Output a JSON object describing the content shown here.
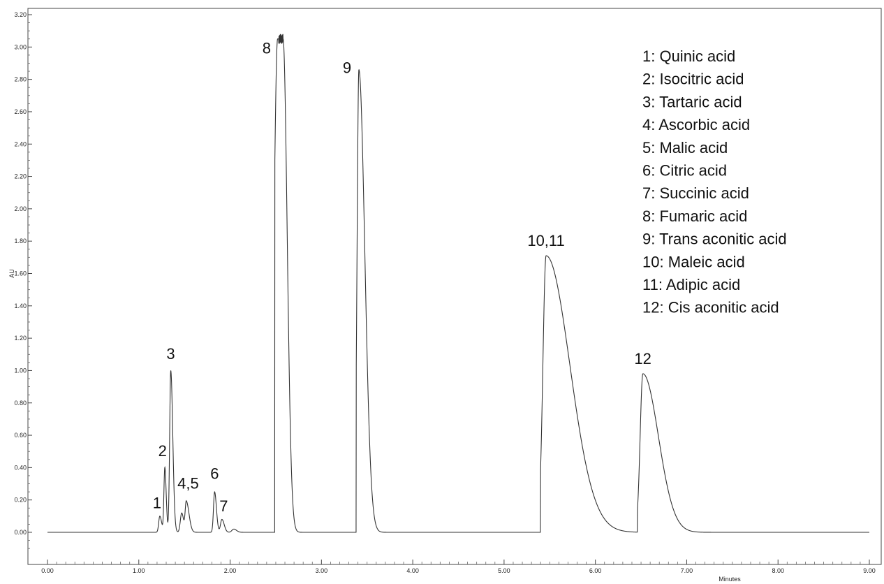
{
  "chart_data": {
    "type": "line",
    "xlabel": "Minutes",
    "ylabel": "AU",
    "xlim": [
      0,
      9.0
    ],
    "ylim": [
      -0.15,
      3.2
    ],
    "x_ticks": [
      "0.00",
      "1.00",
      "2.00",
      "3.00",
      "4.00",
      "5.00",
      "6.00",
      "7.00",
      "8.00",
      "9.00"
    ],
    "y_ticks": [
      "0.00",
      "0.20",
      "0.40",
      "0.60",
      "0.80",
      "1.00",
      "1.20",
      "1.40",
      "1.60",
      "1.80",
      "2.00",
      "2.20",
      "2.40",
      "2.60",
      "2.80",
      "3.00",
      "3.20"
    ],
    "grid": false,
    "baseline": 0.0,
    "series": [
      {
        "peaks": [
          {
            "center": 1.23,
            "height": 0.1,
            "w_left": 0.012,
            "w_right": 0.02
          },
          {
            "center": 1.285,
            "height": 0.4,
            "w_left": 0.01,
            "w_right": 0.015
          },
          {
            "center": 1.35,
            "height": 1.0,
            "w_left": 0.012,
            "w_right": 0.022
          },
          {
            "center": 1.47,
            "height": 0.12,
            "w_left": 0.015,
            "w_right": 0.02
          },
          {
            "center": 1.52,
            "height": 0.19,
            "w_left": 0.012,
            "w_right": 0.03
          },
          {
            "center": 1.83,
            "height": 0.25,
            "w_left": 0.012,
            "w_right": 0.02
          },
          {
            "center": 1.91,
            "height": 0.08,
            "w_left": 0.015,
            "w_right": 0.025
          },
          {
            "center": 2.04,
            "height": 0.02,
            "w_left": 0.02,
            "w_right": 0.03
          },
          {
            "center": 2.55,
            "height": 3.05,
            "w_left": 0.04,
            "w_right": 0.045,
            "plateau": 0.06
          },
          {
            "center": 3.41,
            "height": 2.86,
            "w_left": 0.02,
            "w_right": 0.065
          },
          {
            "center": 5.46,
            "height": 1.71,
            "w_left": 0.035,
            "w_right": 0.26
          },
          {
            "center": 6.52,
            "height": 0.98,
            "w_left": 0.03,
            "w_right": 0.17
          }
        ],
        "step_edges": [
          {
            "x": 2.49,
            "side": "left",
            "peak_index": 8
          },
          {
            "x": 3.38,
            "side": "left",
            "peak_index": 9
          },
          {
            "x": 5.4,
            "side": "left",
            "peak_index": 10
          },
          {
            "x": 6.46,
            "side": "left",
            "peak_index": 11
          }
        ]
      }
    ],
    "peak_labels": [
      {
        "text": "1",
        "x": 1.2,
        "y": 0.15
      },
      {
        "text": "2",
        "x": 1.26,
        "y": 0.47
      },
      {
        "text": "3",
        "x": 1.35,
        "y": 1.07
      },
      {
        "text": "4,5",
        "x": 1.54,
        "y": 0.27
      },
      {
        "text": "6",
        "x": 1.83,
        "y": 0.33
      },
      {
        "text": "7",
        "x": 1.93,
        "y": 0.13
      },
      {
        "text": "8",
        "x": 2.4,
        "y": 2.96
      },
      {
        "text": "9",
        "x": 3.28,
        "y": 2.84
      },
      {
        "text": "10,11",
        "x": 5.46,
        "y": 1.77
      },
      {
        "text": "12",
        "x": 6.52,
        "y": 1.04
      }
    ],
    "legend": [
      "1: Quinic acid",
      "2: Isocitric acid",
      "3: Tartaric acid",
      "4: Ascorbic acid",
      "5: Malic acid",
      "6: Citric acid",
      "7: Succinic acid",
      "8: Fumaric acid",
      "9: Trans aconitic acid",
      "10: Maleic acid",
      "11: Adipic acid",
      "12: Cis aconitic acid"
    ],
    "legend_position": "top-right",
    "line_color": "#333333"
  }
}
